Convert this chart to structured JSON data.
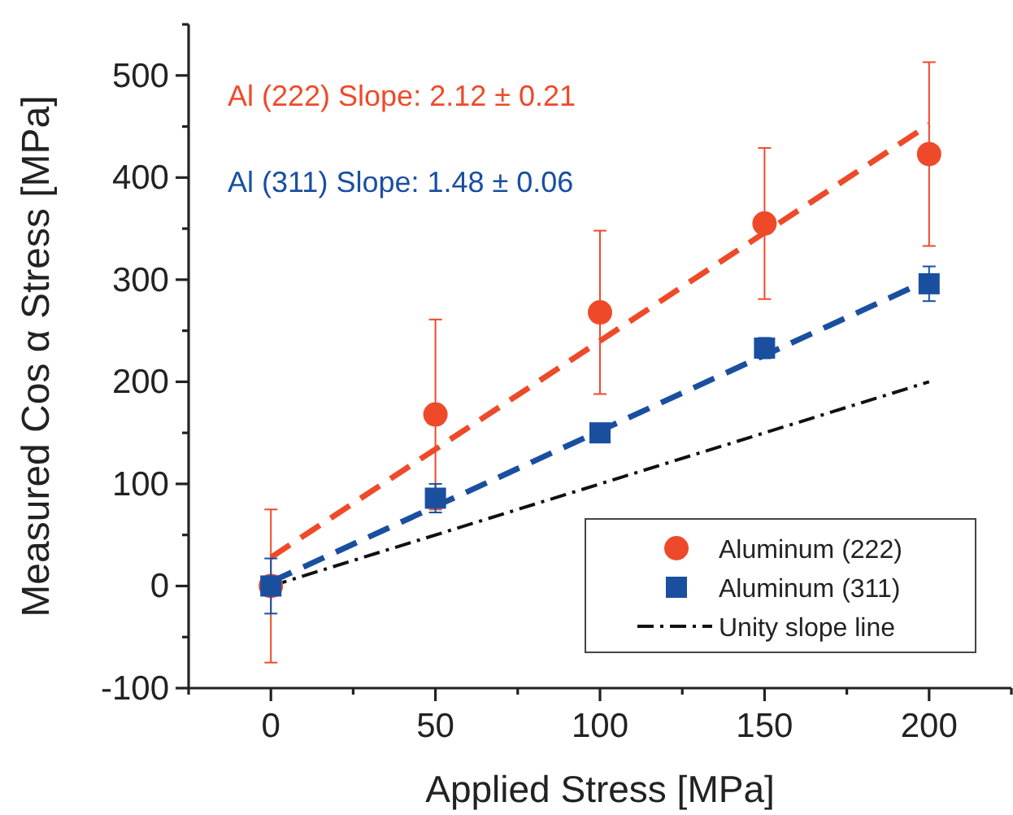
{
  "chart_data": {
    "type": "scatter",
    "xlabel": "Applied Stress [MPa]",
    "ylabel": "Measured Cos α Stress [MPa]",
    "xlim": [
      -25,
      225
    ],
    "xticks": [
      0,
      50,
      100,
      150,
      200
    ],
    "ylim": [
      -100,
      550
    ],
    "yticks": [
      -100,
      0,
      100,
      200,
      300,
      400,
      500
    ],
    "annotations": [
      "Al (222) Slope: 2.12 ± 0.21",
      "Al (311) Slope: 1.48 ± 0.06"
    ],
    "legend": "bottom right",
    "grid": false,
    "series": [
      {
        "name": "Aluminum (222)",
        "marker": "circle",
        "color": "#ee4a2a",
        "x": [
          0,
          50,
          100,
          150,
          200
        ],
        "values": [
          0,
          168,
          268,
          355,
          423
        ],
        "errors": [
          75,
          93,
          80,
          74,
          90
        ]
      },
      {
        "name": "Aluminum (311)",
        "marker": "square",
        "color": "#1a4fa0",
        "x": [
          0,
          50,
          100,
          150,
          200
        ],
        "values": [
          0,
          86,
          150,
          233,
          296
        ],
        "errors": [
          27,
          14,
          8,
          10,
          17
        ]
      },
      {
        "type": "line",
        "line_style": "dashed",
        "color": "#ee4a2a",
        "x": [
          0,
          200
        ],
        "values": [
          28,
          452
        ]
      },
      {
        "type": "line",
        "line_style": "dashed",
        "color": "#1a4fa0",
        "x": [
          0,
          200
        ],
        "values": [
          4,
          300
        ]
      },
      {
        "name": "Unity slope line",
        "type": "line",
        "line_style": "dashdot",
        "color": "#111111",
        "x": [
          0,
          200
        ],
        "values": [
          0,
          200
        ]
      }
    ]
  }
}
